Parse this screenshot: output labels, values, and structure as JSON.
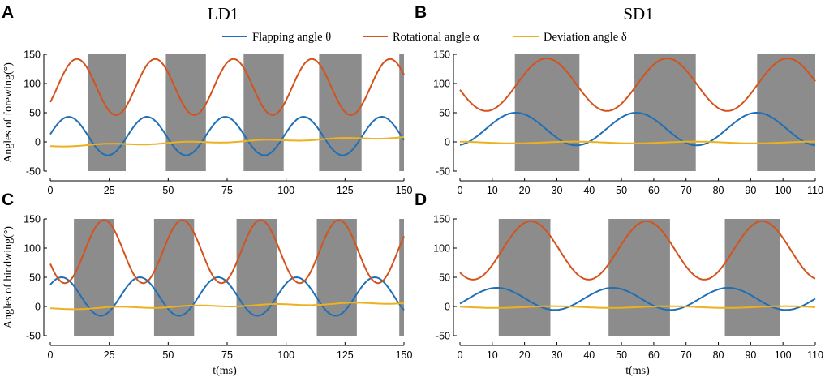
{
  "figure": {
    "column_titles": [
      "LD1",
      "SD1"
    ],
    "legend": [
      {
        "label": "Flapping angle θ",
        "color": "#1f6fb6"
      },
      {
        "label": "Rotational angle α",
        "color": "#d4521c"
      },
      {
        "label": "Deviation angle δ",
        "color": "#edb11f"
      }
    ],
    "shade_color": "#8c8c8c"
  },
  "chart_data": [
    {
      "type": "line",
      "panel": "A",
      "column_title": "LD1",
      "xlabel": "",
      "ylabel": "Angles of forewing(°)",
      "xlim": [
        0,
        150
      ],
      "ylim": [
        -50,
        150
      ],
      "xticks": [
        0,
        25,
        50,
        75,
        100,
        125,
        150
      ],
      "yticks": [
        -50,
        0,
        50,
        100,
        150
      ],
      "shaded_regions": [
        [
          16,
          32
        ],
        [
          49,
          66
        ],
        [
          82,
          99
        ],
        [
          114,
          132
        ],
        [
          148,
          150
        ]
      ],
      "series": [
        {
          "name": "Flapping angle θ",
          "params": {
            "period": 33.2,
            "phase": -0.5,
            "mean": 10,
            "amp": 33,
            "trend": 0
          }
        },
        {
          "name": "Rotational angle α",
          "params": {
            "period": 33.2,
            "phase": 3,
            "mean": 94,
            "amp": 48,
            "trend": 0
          }
        },
        {
          "name": "Deviation angle δ",
          "params": {
            "period": 33.2,
            "phase": 16,
            "mean": -7,
            "amp": 1.5,
            "trend": 0.1
          }
        }
      ]
    },
    {
      "type": "line",
      "panel": "B",
      "column_title": "SD1",
      "xlabel": "",
      "ylabel": "",
      "xlim": [
        0,
        110
      ],
      "ylim": [
        -50,
        150
      ],
      "xticks": [
        0,
        10,
        20,
        30,
        40,
        50,
        60,
        70,
        80,
        90,
        100,
        110
      ],
      "yticks": [
        -50,
        0,
        50,
        100,
        150
      ],
      "shaded_regions": [
        [
          17,
          37
        ],
        [
          54,
          73
        ],
        [
          92,
          110
        ]
      ],
      "series": [
        {
          "name": "Flapping angle θ",
          "params": {
            "period": 37.3,
            "phase": 8,
            "mean": 22,
            "amp": 28,
            "trend": 0
          }
        },
        {
          "name": "Rotational angle α",
          "params": {
            "period": 37.3,
            "phase": 17.5,
            "mean": 98,
            "amp": 45,
            "trend": 0
          }
        },
        {
          "name": "Deviation angle δ",
          "params": {
            "period": 37.3,
            "phase": 26,
            "mean": -1,
            "amp": 1.5,
            "trend": 0
          }
        }
      ]
    },
    {
      "type": "line",
      "panel": "C",
      "column_title": "",
      "xlabel": "t(ms)",
      "ylabel": "Angles of hindwing(°)",
      "xlim": [
        0,
        150
      ],
      "ylim": [
        -50,
        150
      ],
      "xticks": [
        0,
        25,
        50,
        75,
        100,
        125,
        150
      ],
      "yticks": [
        -50,
        0,
        50,
        100,
        150
      ],
      "shaded_regions": [
        [
          10,
          27
        ],
        [
          44,
          61
        ],
        [
          79,
          96
        ],
        [
          113,
          130
        ],
        [
          148,
          150
        ]
      ],
      "series": [
        {
          "name": "Flapping angle θ",
          "params": {
            "period": 33.2,
            "phase": -3.5,
            "mean": 17,
            "amp": 33,
            "trend": 0
          }
        },
        {
          "name": "Rotational angle α",
          "params": {
            "period": 33.2,
            "phase": 14.5,
            "mean": 94,
            "amp": 54,
            "trend": 0
          }
        },
        {
          "name": "Deviation angle δ",
          "params": {
            "period": 33.2,
            "phase": 20,
            "mean": -4,
            "amp": 1.5,
            "trend": 0.07
          }
        }
      ]
    },
    {
      "type": "line",
      "panel": "D",
      "column_title": "",
      "xlabel": "t(ms)",
      "ylabel": "",
      "xlim": [
        0,
        110
      ],
      "ylim": [
        -50,
        150
      ],
      "xticks": [
        0,
        10,
        20,
        30,
        40,
        50,
        60,
        70,
        80,
        90,
        100,
        110
      ],
      "yticks": [
        -50,
        0,
        50,
        100,
        150
      ],
      "shaded_regions": [
        [
          12,
          28
        ],
        [
          46,
          65
        ],
        [
          82,
          99
        ]
      ],
      "series": [
        {
          "name": "Flapping angle θ",
          "params": {
            "period": 35.8,
            "phase": 2.5,
            "mean": 13,
            "amp": 19,
            "trend": 0
          }
        },
        {
          "name": "Rotational angle α",
          "params": {
            "period": 35.8,
            "phase": 13,
            "mean": 96,
            "amp": 50,
            "trend": 0
          }
        },
        {
          "name": "Deviation angle δ",
          "params": {
            "period": 35.8,
            "phase": 20,
            "mean": -1,
            "amp": 1.5,
            "trend": 0
          }
        }
      ]
    }
  ]
}
